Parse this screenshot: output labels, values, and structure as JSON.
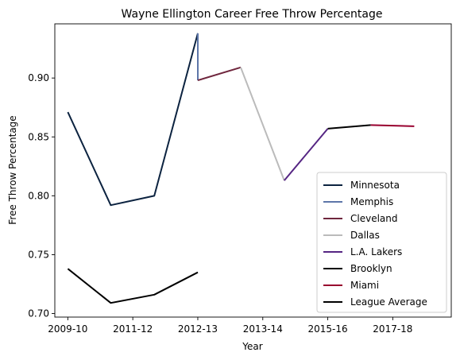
{
  "chart_data": {
    "type": "line",
    "title": "Wayne Ellington Career Free Throw Percentage",
    "xlabel": "Year",
    "ylabel": "Free Throw Percentage",
    "xlim": [
      -0.2,
      5.9
    ],
    "ylim": [
      0.697,
      0.946
    ],
    "x_ticks": [
      {
        "x": 0,
        "label": "2009-10"
      },
      {
        "x": 1,
        "label": "2011-12"
      },
      {
        "x": 2,
        "label": "2012-13"
      },
      {
        "x": 3,
        "label": "2013-14"
      },
      {
        "x": 4,
        "label": "2015-16"
      },
      {
        "x": 5,
        "label": "2017-18"
      }
    ],
    "y_ticks": [
      {
        "y": 0.7,
        "label": "0.70"
      },
      {
        "y": 0.75,
        "label": "0.75"
      },
      {
        "y": 0.8,
        "label": "0.80"
      },
      {
        "y": 0.85,
        "label": "0.85"
      },
      {
        "y": 0.9,
        "label": "0.90"
      }
    ],
    "series": [
      {
        "name": "Minnesota",
        "color": "#0C2340",
        "points": [
          [
            0,
            0.871
          ],
          [
            0.66,
            0.792
          ],
          [
            1.33,
            0.8
          ],
          [
            2.0,
            0.938
          ]
        ]
      },
      {
        "name": "Memphis",
        "color": "#5D76A9",
        "points": [
          [
            2.0,
            0.938
          ],
          [
            2.0,
            0.898
          ]
        ]
      },
      {
        "name": "Cleveland",
        "color": "#6F263D",
        "points": [
          [
            2.0,
            0.898
          ],
          [
            2.66,
            0.909
          ]
        ]
      },
      {
        "name": "Dallas",
        "color": "#BBBBBB",
        "points": [
          [
            2.66,
            0.909
          ],
          [
            3.33,
            0.813
          ]
        ]
      },
      {
        "name": "L.A. Lakers",
        "color": "#552583",
        "points": [
          [
            3.33,
            0.813
          ],
          [
            4.0,
            0.857
          ]
        ]
      },
      {
        "name": "Brooklyn",
        "color": "#000000",
        "points": [
          [
            4.0,
            0.857
          ],
          [
            4.66,
            0.86
          ]
        ]
      },
      {
        "name": "Miami",
        "color": "#98002E",
        "points": [
          [
            4.66,
            0.86
          ],
          [
            5.33,
            0.859
          ]
        ]
      },
      {
        "name": "League Average",
        "color": "#000000",
        "points": [
          [
            0,
            0.738
          ],
          [
            0.66,
            0.709
          ],
          [
            1.33,
            0.716
          ],
          [
            2.0,
            0.735
          ]
        ]
      }
    ],
    "legend": "lower-right",
    "grid": false
  }
}
